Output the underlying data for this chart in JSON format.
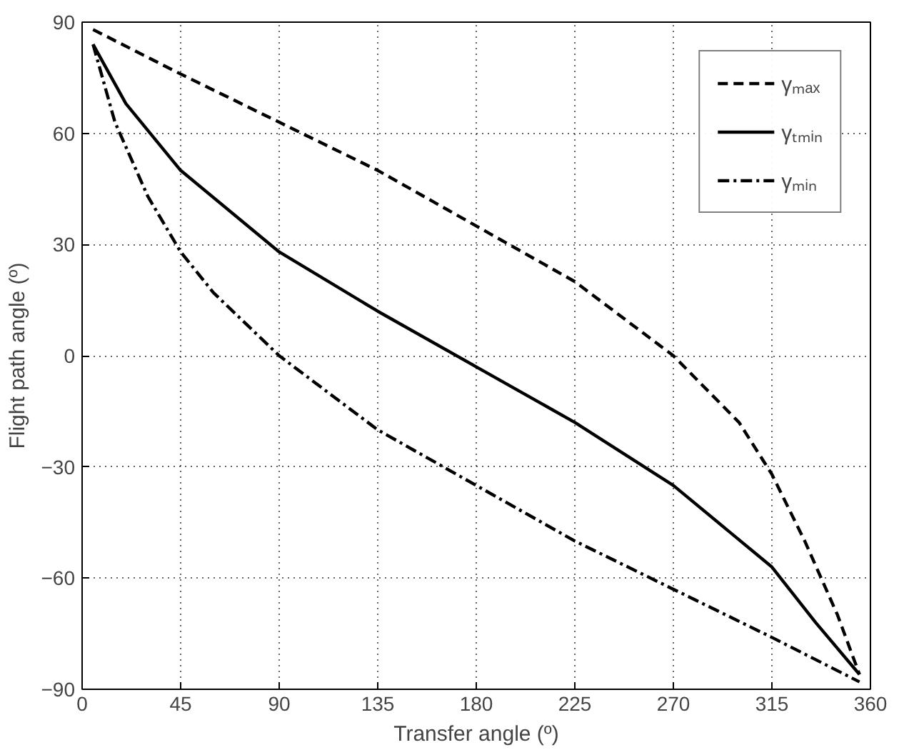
{
  "chart_data": {
    "type": "line",
    "xlabel": "Transfer angle (º)",
    "ylabel": "Flight path angle (º)",
    "xlim": [
      0,
      360
    ],
    "ylim": [
      -90,
      90
    ],
    "xticks": [
      0,
      45,
      90,
      135,
      180,
      225,
      270,
      315,
      360
    ],
    "yticks": [
      {
        "value": -90,
        "label": "−90"
      },
      {
        "value": -60,
        "label": "−60"
      },
      {
        "value": -30,
        "label": "−30"
      },
      0,
      30,
      60,
      90
    ],
    "grid": true,
    "legend": "top right",
    "marker": "none",
    "series": [
      {
        "name": "γₘₐₓ",
        "color": "#000000",
        "line_style": "dashed",
        "x": [
          5,
          45,
          90,
          135,
          180,
          225,
          270,
          300,
          315,
          330,
          345,
          355
        ],
        "values": [
          88,
          76,
          63,
          50,
          35,
          20,
          0,
          -18,
          -32,
          -50,
          -70,
          -86
        ]
      },
      {
        "name": "γₜₘᵢₙ",
        "color": "#000000",
        "line_style": "solid",
        "x": [
          5,
          20,
          45,
          90,
          135,
          180,
          225,
          270,
          315,
          335,
          355
        ],
        "values": [
          84,
          68,
          50,
          28,
          12,
          -3,
          -18,
          -35,
          -57,
          -72,
          -86
        ]
      },
      {
        "name": "γₘᵢₙ",
        "color": "#000000",
        "line_style": "dashdot",
        "x": [
          5,
          15,
          30,
          45,
          60,
          90,
          135,
          180,
          225,
          270,
          315,
          355
        ],
        "values": [
          84,
          63,
          43,
          28,
          17,
          0,
          -20,
          -35,
          -50,
          -63,
          -76,
          -88
        ]
      }
    ]
  }
}
